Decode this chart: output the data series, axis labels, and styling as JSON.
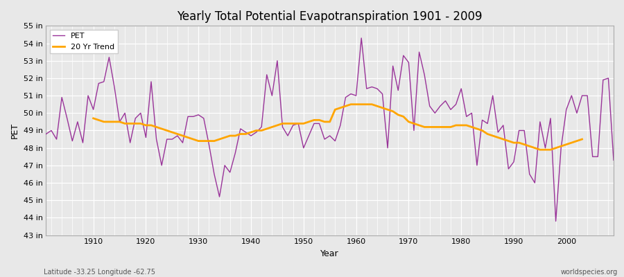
{
  "title": "Yearly Total Potential Evapotranspiration 1901 - 2009",
  "xlabel": "Year",
  "ylabel": "PET",
  "footnote_left": "Latitude -33.25 Longitude -62.75",
  "footnote_right": "worldspecies.org",
  "ylim": [
    43,
    55
  ],
  "ytick_vals": [
    43,
    44,
    45,
    46,
    47,
    48,
    49,
    50,
    51,
    52,
    53,
    54,
    55
  ],
  "ytick_labels": [
    "43 in",
    "44 in",
    "45 in",
    "46 in",
    "47 in",
    "48 in",
    "49 in",
    "50 in",
    "51 in",
    "52 in",
    "53 in",
    "54 in",
    "55 in"
  ],
  "xlim": [
    1901,
    2009
  ],
  "xticks": [
    1910,
    1920,
    1930,
    1940,
    1950,
    1960,
    1970,
    1980,
    1990,
    2000
  ],
  "pet_color": "#993399",
  "trend_color": "#FFA500",
  "bg_color": "#E8E8E8",
  "grid_color": "#FFFFFF",
  "years": [
    1901,
    1902,
    1903,
    1904,
    1905,
    1906,
    1907,
    1908,
    1909,
    1910,
    1911,
    1912,
    1913,
    1914,
    1915,
    1916,
    1917,
    1918,
    1919,
    1920,
    1921,
    1922,
    1923,
    1924,
    1925,
    1926,
    1927,
    1928,
    1929,
    1930,
    1931,
    1932,
    1933,
    1934,
    1935,
    1936,
    1937,
    1938,
    1939,
    1940,
    1941,
    1942,
    1943,
    1944,
    1945,
    1946,
    1947,
    1948,
    1949,
    1950,
    1951,
    1952,
    1953,
    1954,
    1955,
    1956,
    1957,
    1958,
    1959,
    1960,
    1961,
    1962,
    1963,
    1964,
    1965,
    1966,
    1967,
    1968,
    1969,
    1970,
    1971,
    1972,
    1973,
    1974,
    1975,
    1976,
    1977,
    1978,
    1979,
    1980,
    1981,
    1982,
    1983,
    1984,
    1985,
    1986,
    1987,
    1988,
    1989,
    1990,
    1991,
    1992,
    1993,
    1994,
    1995,
    1996,
    1997,
    1998,
    1999,
    2000,
    2001,
    2002,
    2003,
    2004,
    2005,
    2006,
    2007,
    2008,
    2009
  ],
  "pet_values": [
    48.8,
    49.0,
    48.5,
    50.9,
    49.7,
    48.4,
    49.5,
    48.3,
    51.0,
    50.2,
    51.7,
    51.8,
    53.2,
    51.5,
    49.5,
    50.0,
    48.3,
    49.7,
    50.0,
    48.6,
    51.8,
    48.5,
    47.0,
    48.5,
    48.5,
    48.7,
    48.3,
    49.8,
    49.8,
    49.9,
    49.7,
    48.2,
    46.5,
    45.2,
    47.0,
    46.6,
    47.7,
    49.1,
    48.9,
    48.7,
    48.9,
    49.2,
    52.2,
    51.0,
    53.0,
    49.2,
    48.7,
    49.3,
    49.4,
    48.0,
    48.7,
    49.4,
    49.4,
    48.5,
    48.7,
    48.4,
    49.3,
    50.9,
    51.1,
    51.0,
    54.3,
    51.4,
    51.5,
    51.4,
    51.1,
    48.0,
    52.7,
    51.3,
    53.3,
    52.9,
    49.0,
    53.5,
    52.2,
    50.4,
    50.0,
    50.4,
    50.7,
    50.2,
    50.5,
    51.4,
    49.8,
    50.0,
    47.0,
    49.6,
    49.4,
    51.0,
    48.9,
    49.3,
    46.8,
    47.2,
    49.0,
    49.0,
    46.5,
    46.0,
    49.5,
    48.0,
    49.7,
    43.8,
    48.0,
    50.2,
    51.0,
    50.0,
    51.0,
    51.0,
    47.5,
    47.5,
    51.9,
    52.0,
    47.3
  ],
  "trend_values": [
    null,
    null,
    null,
    null,
    null,
    null,
    null,
    null,
    null,
    49.7,
    49.6,
    49.5,
    49.5,
    49.5,
    49.5,
    49.4,
    49.4,
    49.4,
    49.4,
    49.3,
    49.3,
    49.2,
    49.1,
    49.0,
    48.9,
    48.8,
    48.7,
    48.6,
    48.5,
    48.4,
    48.4,
    48.4,
    48.4,
    48.5,
    48.6,
    48.7,
    48.7,
    48.8,
    48.8,
    48.9,
    49.0,
    49.0,
    49.1,
    49.2,
    49.3,
    49.4,
    49.4,
    49.4,
    49.4,
    49.4,
    49.5,
    49.6,
    49.6,
    49.5,
    49.5,
    50.2,
    50.3,
    50.4,
    50.5,
    50.5,
    50.5,
    50.5,
    50.5,
    50.4,
    50.3,
    50.2,
    50.1,
    49.9,
    49.8,
    49.5,
    49.4,
    49.3,
    49.2,
    49.2,
    49.2,
    49.2,
    49.2,
    49.2,
    49.3,
    49.3,
    49.3,
    49.2,
    49.1,
    49.0,
    48.8,
    48.7,
    48.6,
    48.5,
    48.4,
    48.3,
    48.3,
    48.2,
    48.1,
    48.0,
    47.9,
    47.9,
    47.9,
    48.0,
    48.1,
    48.2,
    48.3,
    48.4,
    48.5,
    null,
    null,
    null,
    null,
    null
  ]
}
